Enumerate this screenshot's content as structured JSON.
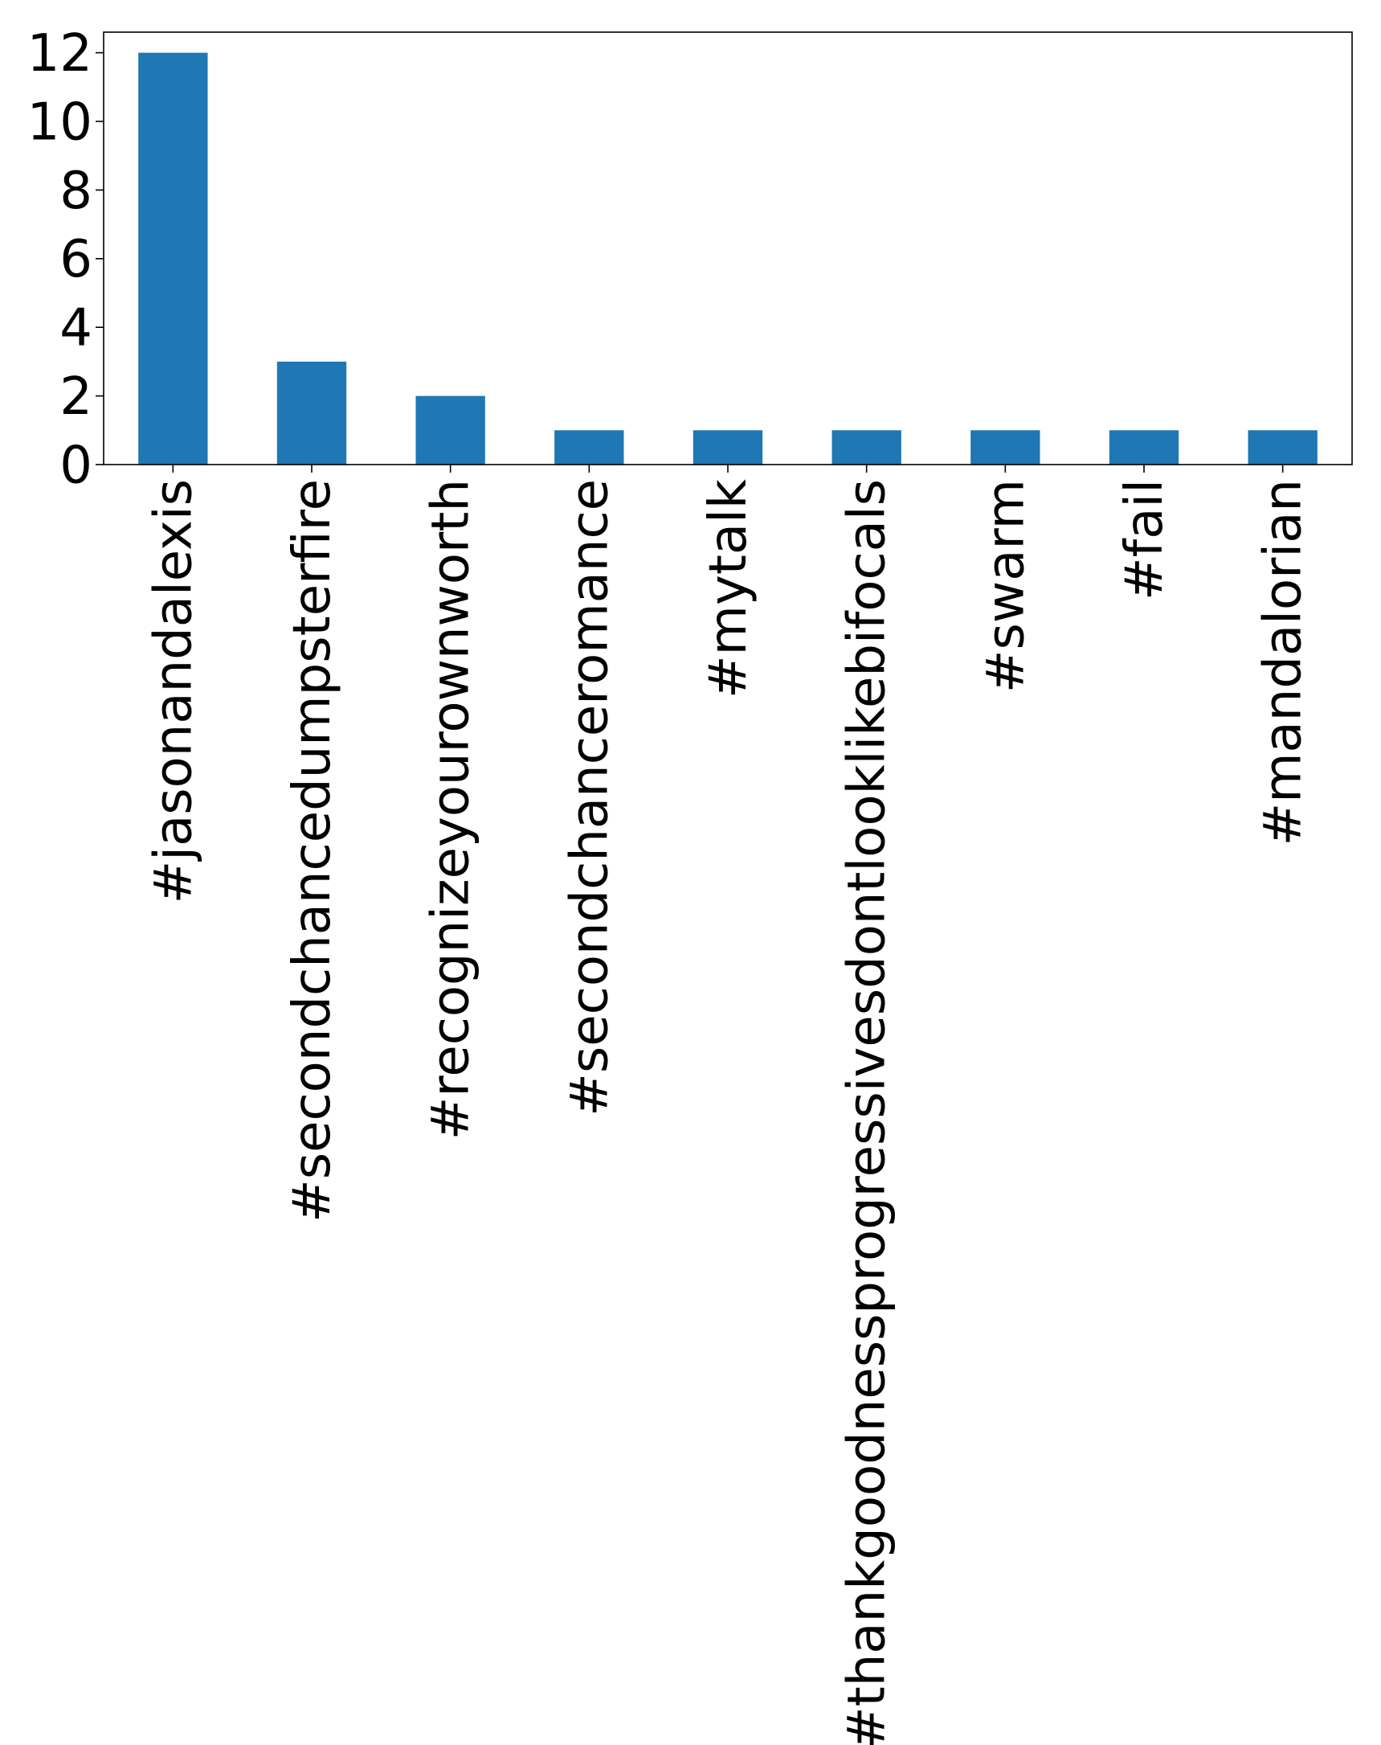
{
  "chart_data": {
    "type": "bar",
    "categories": [
      "#jasonandalexis",
      "#secondchancedumpsterfire",
      "#recognizeyourownworth",
      "#secondchanceromance",
      "#mytalk",
      "#thankgoodnessprogressivesdontlooklikebifocals",
      "#swarm",
      "#fail",
      "#mandalorian"
    ],
    "values": [
      12,
      3,
      2,
      1,
      1,
      1,
      1,
      1,
      1
    ],
    "yticks": [
      0,
      2,
      4,
      6,
      8,
      10,
      12
    ],
    "ylim": [
      0,
      12.6
    ],
    "grid": false,
    "bar_color": "#1f77b4"
  }
}
